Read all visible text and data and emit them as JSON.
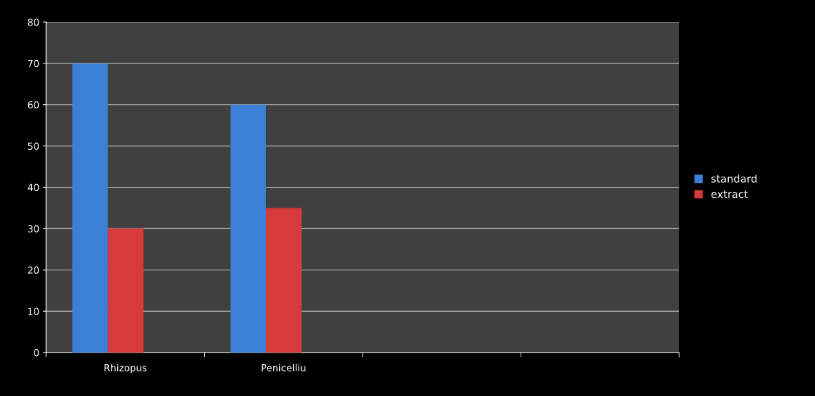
{
  "chart_data": {
    "type": "bar",
    "categories": [
      "Rhizopus",
      "Penicelliu",
      null,
      null
    ],
    "series": [
      {
        "name": "standard",
        "color": "#3b7fd6",
        "values": [
          70,
          60,
          null,
          null
        ]
      },
      {
        "name": "extract",
        "color": "#d63a3a",
        "values": [
          30,
          35,
          null,
          null
        ]
      }
    ],
    "ylim": [
      0,
      80
    ],
    "yticks": [
      0,
      10,
      20,
      30,
      40,
      50,
      60,
      70,
      80
    ],
    "grid": "y",
    "legend": "right"
  }
}
